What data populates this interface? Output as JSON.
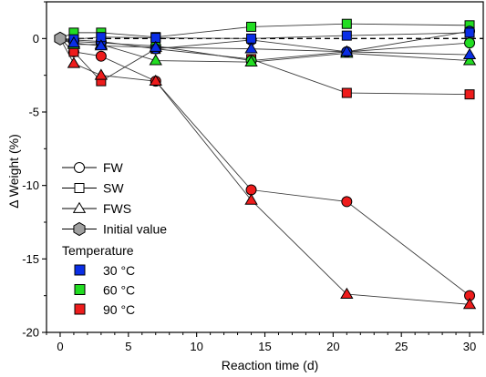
{
  "chart_data": {
    "type": "line",
    "xlabel": "Reaction time (d)",
    "ylabel": "Δ Weight (%)",
    "xlim": [
      -1,
      31
    ],
    "ylim": [
      -20,
      2.5
    ],
    "xticks": [
      0,
      5,
      10,
      15,
      20,
      25,
      30
    ],
    "yticks": [
      0,
      -5,
      -10,
      -15,
      -20
    ],
    "grid": false,
    "reference_line": {
      "y": 0,
      "style": "dashed"
    },
    "initial_value": {
      "x": 0,
      "y": 0
    },
    "series": [
      {
        "temperature": "30 °C",
        "sample": "FW",
        "x": [
          1,
          3,
          7,
          14,
          21,
          30
        ],
        "y": [
          -0.1,
          -0.2,
          -0.7,
          -0.1,
          -0.9,
          0.5
        ]
      },
      {
        "temperature": "30 °C",
        "sample": "SW",
        "x": [
          1,
          3,
          7,
          14,
          21,
          30
        ],
        "y": [
          -0.05,
          0.1,
          0.05,
          0.0,
          0.2,
          0.4
        ]
      },
      {
        "temperature": "30 °C",
        "sample": "FWS",
        "x": [
          1,
          3,
          7,
          14,
          21,
          30
        ],
        "y": [
          -0.3,
          -0.5,
          -0.6,
          -0.7,
          -0.9,
          -1.1
        ]
      },
      {
        "temperature": "60 °C",
        "sample": "FW",
        "x": [
          1,
          3,
          7,
          14,
          21,
          30
        ],
        "y": [
          -0.2,
          -0.3,
          -0.5,
          -1.5,
          -0.9,
          -0.3
        ]
      },
      {
        "temperature": "60 °C",
        "sample": "SW",
        "x": [
          1,
          3,
          7,
          14,
          21,
          30
        ],
        "y": [
          0.4,
          0.4,
          0.1,
          0.8,
          1.0,
          0.9
        ]
      },
      {
        "temperature": "60 °C",
        "sample": "FWS",
        "x": [
          1,
          3,
          7,
          14,
          21,
          30
        ],
        "y": [
          -0.4,
          -0.4,
          -1.5,
          -1.6,
          -1.0,
          -1.5
        ]
      },
      {
        "temperature": "90 °C",
        "sample": "FW",
        "x": [
          1,
          3,
          7,
          14,
          21,
          30
        ],
        "y": [
          -0.9,
          -1.2,
          -2.9,
          -10.3,
          -11.1,
          -17.5
        ]
      },
      {
        "temperature": "90 °C",
        "sample": "SW",
        "x": [
          1,
          3,
          7,
          14,
          21,
          30
        ],
        "y": [
          -0.9,
          -2.9,
          -0.7,
          -1.4,
          -3.7,
          -3.8
        ]
      },
      {
        "temperature": "90 °C",
        "sample": "FWS",
        "x": [
          1,
          3,
          7,
          14,
          21,
          30
        ],
        "y": [
          -1.7,
          -2.5,
          -2.9,
          -11.0,
          -17.4,
          -18.1
        ]
      }
    ],
    "legend": {
      "placement": "lower-left",
      "shape_entries": [
        {
          "label": "FW",
          "marker": "circle"
        },
        {
          "label": "SW",
          "marker": "square"
        },
        {
          "label": "FWS",
          "marker": "triangle"
        },
        {
          "label": "Initial value",
          "marker": "hexagon"
        }
      ],
      "color_title": "Temperature",
      "color_entries": [
        {
          "label": "30 °C",
          "color": "#0a2ee6"
        },
        {
          "label": "60 °C",
          "color": "#22dd22"
        },
        {
          "label": "90 °C",
          "color": "#ee1c1c"
        }
      ]
    },
    "colors": {
      "30 °C": "#0a2ee6",
      "60 °C": "#22dd22",
      "90 °C": "#ee1c1c",
      "initial": "#a0a0a0"
    }
  }
}
